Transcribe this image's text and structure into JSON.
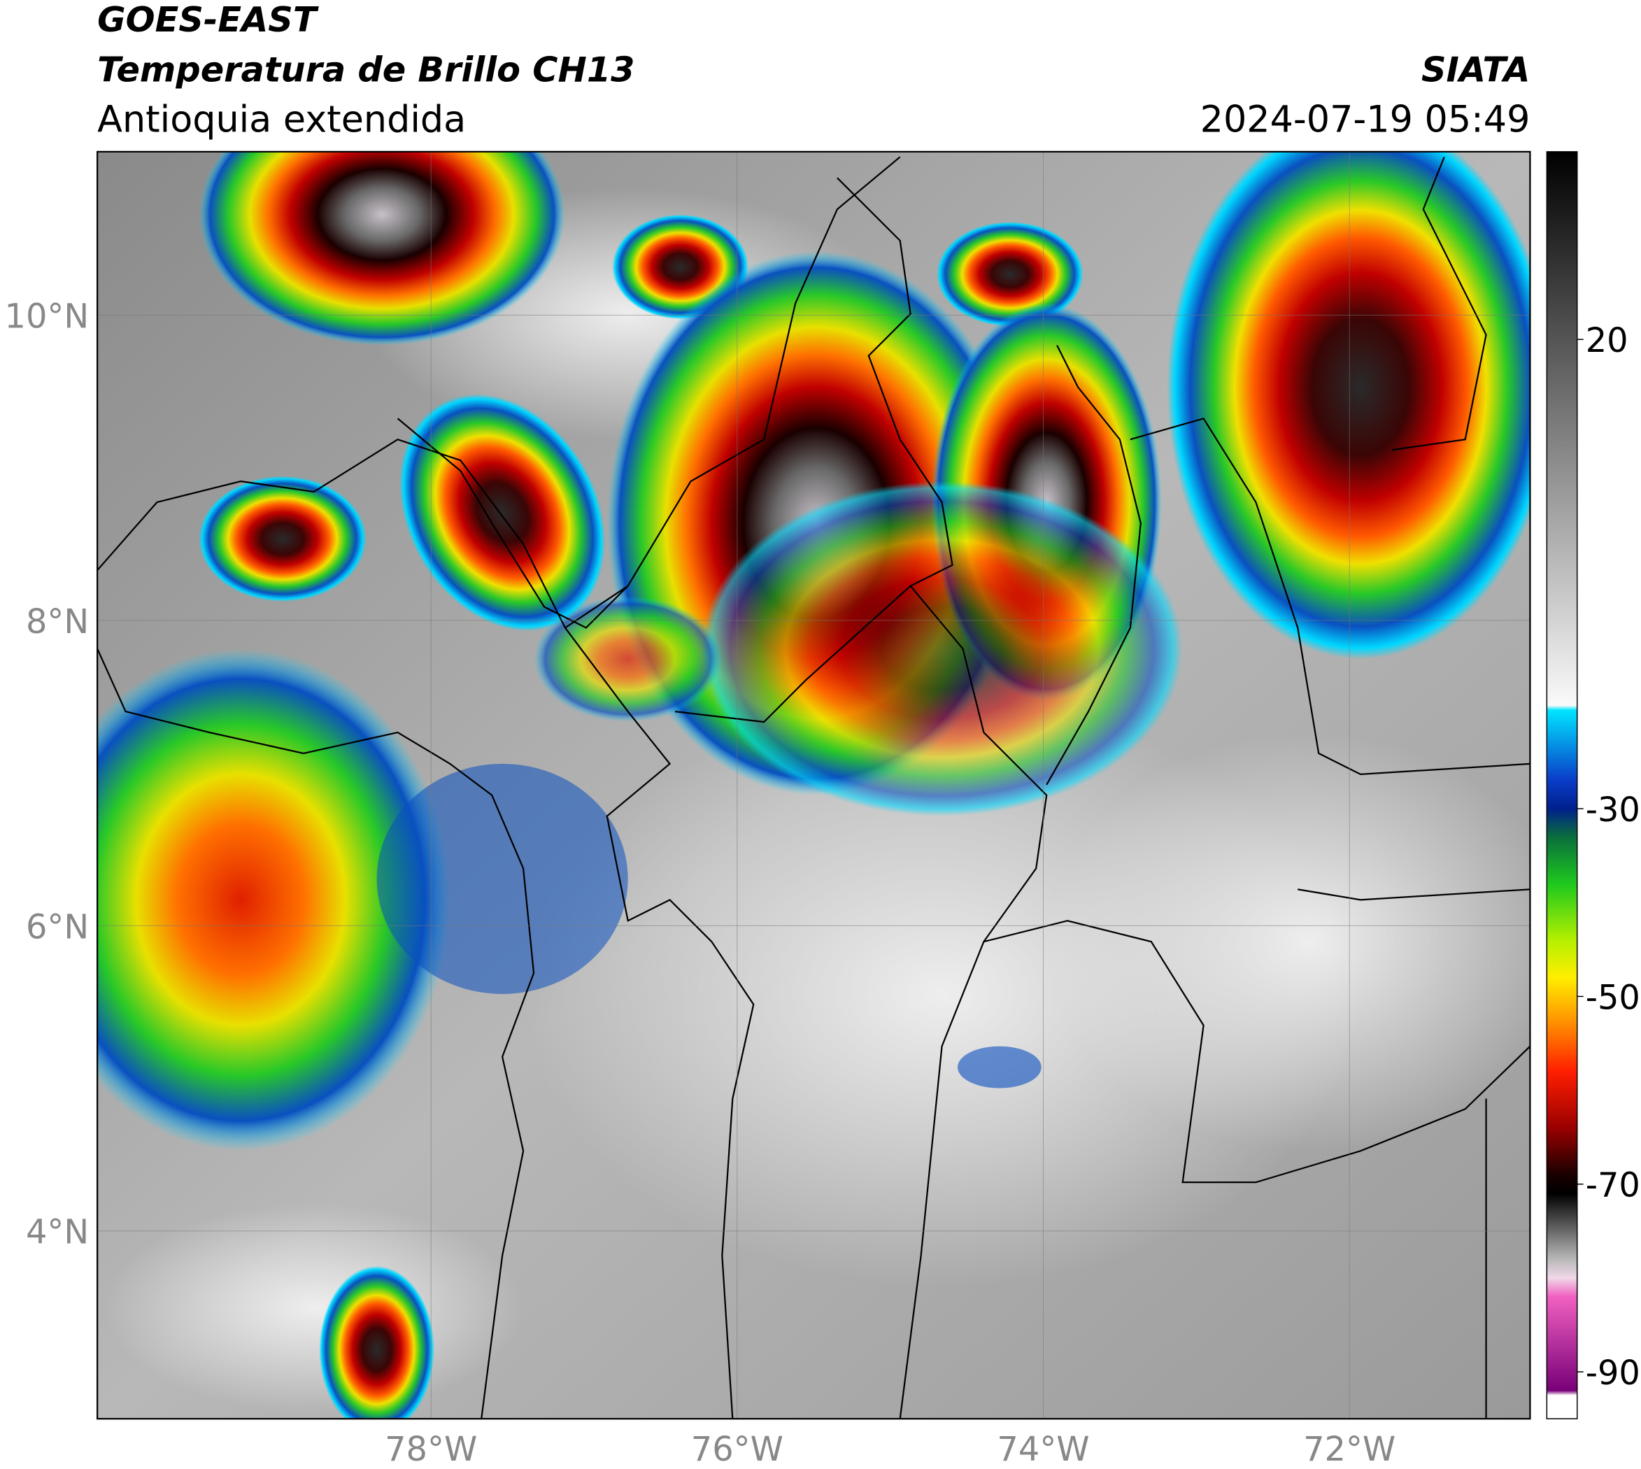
{
  "header": {
    "title": "GOES-EAST",
    "subtitle": "Temperatura de Brillo CH13",
    "region": "Antioquia extendida",
    "agency": "SIATA",
    "datetime": "2024-07-19 05:49"
  },
  "map": {
    "xlim": [
      -80.18,
      -70.82
    ],
    "ylim": [
      2.77,
      11.07
    ],
    "xticks": [
      {
        "value": -78,
        "label": "78°W"
      },
      {
        "value": -76,
        "label": "76°W"
      },
      {
        "value": -74,
        "label": "74°W"
      },
      {
        "value": -72,
        "label": "72°W"
      }
    ],
    "yticks": [
      {
        "value": 4,
        "label": "4°N"
      },
      {
        "value": 6,
        "label": "6°N"
      },
      {
        "value": 8,
        "label": "8°N"
      },
      {
        "value": 10,
        "label": "10°N"
      }
    ],
    "grid": true
  },
  "colorbar": {
    "clim": [
      -95,
      40
    ],
    "ticks": [
      -90,
      -70,
      -50,
      -30,
      20
    ],
    "stops": [
      {
        "value": 40,
        "color": "#000000"
      },
      {
        "value": -19,
        "color": "#fafafa"
      },
      {
        "value": -19.5,
        "color": "#00e5ff"
      },
      {
        "value": -27,
        "color": "#0a3cc8"
      },
      {
        "value": -30,
        "color": "#00208c"
      },
      {
        "value": -33,
        "color": "#0a6e3c"
      },
      {
        "value": -38,
        "color": "#1ec81e"
      },
      {
        "value": -44,
        "color": "#b4f000"
      },
      {
        "value": -48,
        "color": "#ffee00"
      },
      {
        "value": -53,
        "color": "#ff8c00"
      },
      {
        "value": -58,
        "color": "#ff1e00"
      },
      {
        "value": -64,
        "color": "#9a0000"
      },
      {
        "value": -69,
        "color": "#1a0000"
      },
      {
        "value": -71,
        "color": "#000000"
      },
      {
        "value": -78,
        "color": "#b8b8b8"
      },
      {
        "value": -80,
        "color": "#f0d8e8"
      },
      {
        "value": -82,
        "color": "#f060c0"
      },
      {
        "value": -92,
        "color": "#780078"
      },
      {
        "value": -92.5,
        "color": "#ffffff"
      }
    ]
  }
}
